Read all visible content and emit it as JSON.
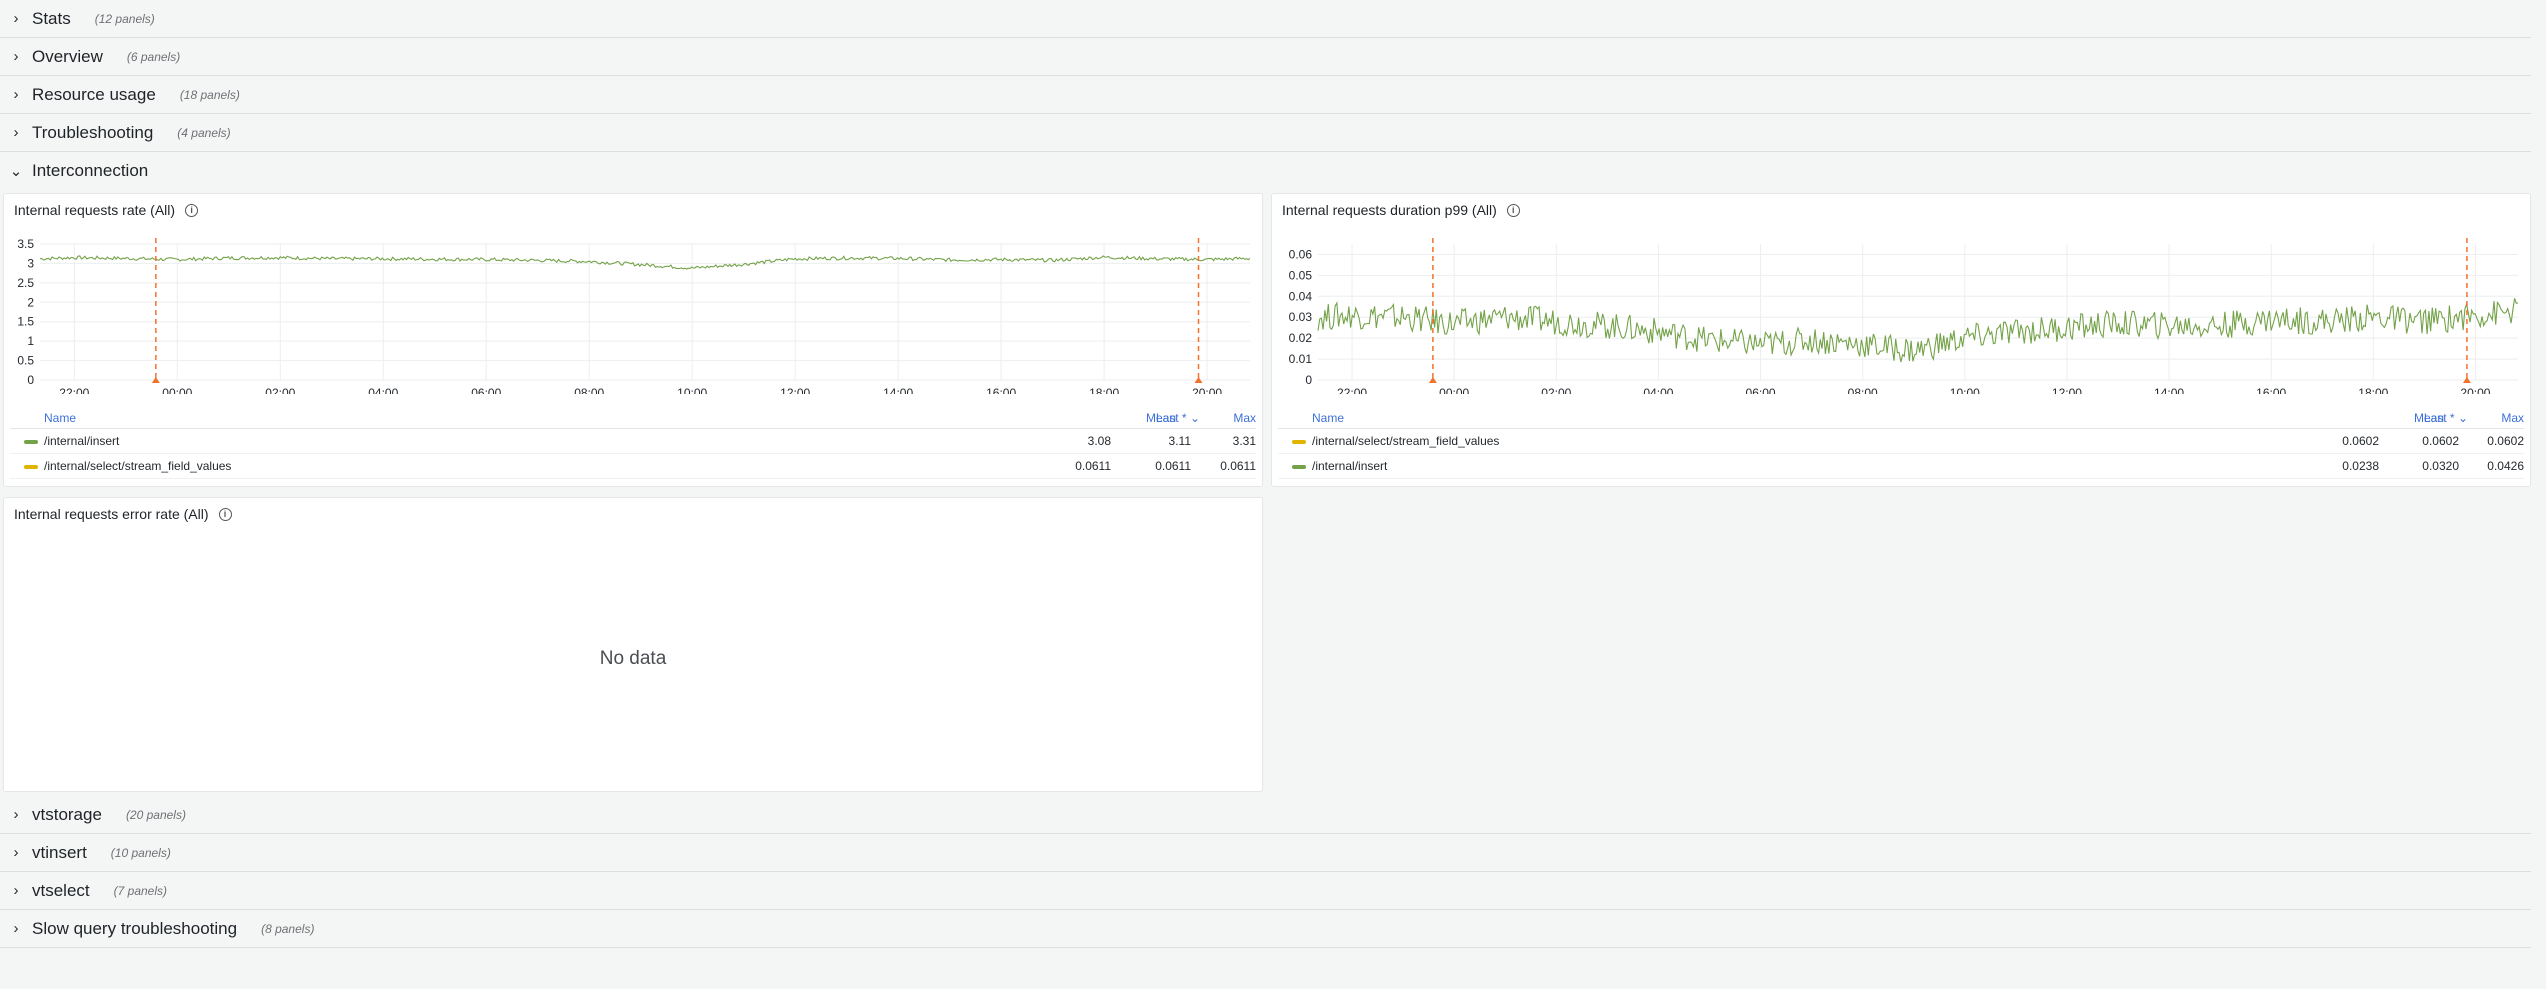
{
  "rows_top": [
    {
      "title": "Stats",
      "count": "(12 panels)"
    },
    {
      "title": "Overview",
      "count": "(6 panels)"
    },
    {
      "title": "Resource usage",
      "count": "(18 panels)"
    },
    {
      "title": "Troubleshooting",
      "count": "(4 panels)"
    }
  ],
  "open_row": {
    "title": "Interconnection"
  },
  "rows_bottom": [
    {
      "title": "vtstorage",
      "count": "(20 panels)"
    },
    {
      "title": "vtinsert",
      "count": "(10 panels)"
    },
    {
      "title": "vtselect",
      "count": "(7 panels)"
    },
    {
      "title": "Slow query troubleshooting",
      "count": "(8 panels)"
    }
  ],
  "colors": {
    "green": "#73a248",
    "yellow": "#e0b400",
    "annotation": "#f2712b",
    "legend_header": "#3d71d9"
  },
  "icons": {
    "collapsed": "chevron-right-icon",
    "expanded": "chevron-down-icon",
    "info": "info-icon"
  },
  "panels": {
    "rate": {
      "title": "Internal requests rate (All)",
      "legend_header": {
        "name": "Name",
        "mean": "Mean",
        "last": "Last *",
        "max": "Max"
      },
      "legend": [
        {
          "name": "/internal/insert",
          "mean": "3.08",
          "last": "3.11",
          "max": "3.31",
          "color": "#73a248"
        },
        {
          "name": "/internal/select/stream_field_values",
          "mean": "0.0611",
          "last": "0.0611",
          "max": "0.0611",
          "color": "#e0b400"
        }
      ]
    },
    "duration": {
      "title": "Internal requests duration p99 (All)",
      "legend_header": {
        "name": "Name",
        "mean": "Mean",
        "last": "Last *",
        "max": "Max"
      },
      "legend": [
        {
          "name": "/internal/select/stream_field_values",
          "mean": "0.0602",
          "last": "0.0602",
          "max": "0.0602",
          "color": "#e0b400"
        },
        {
          "name": "/internal/insert",
          "mean": "0.0238",
          "last": "0.0320",
          "max": "0.0426",
          "color": "#73a248"
        }
      ]
    },
    "error": {
      "title": "Internal requests error rate (All)",
      "nodata": "No data"
    }
  },
  "chart_data": [
    {
      "type": "line",
      "x_ticks": [
        "22:00",
        "00:00",
        "02:00",
        "04:00",
        "06:00",
        "08:00",
        "10:00",
        "12:00",
        "14:00",
        "16:00",
        "18:00",
        "20:00"
      ],
      "y_ticks": [
        "0",
        "0.5",
        "1",
        "1.5",
        "2",
        "2.5",
        "3",
        "3.5"
      ],
      "ylim": [
        0,
        3.5
      ],
      "annotations_x": [
        "23:35",
        "19:50"
      ],
      "series": [
        {
          "name": "/internal/insert",
          "x": [
            "21:20",
            "22:00",
            "23:00",
            "00:00",
            "01:00",
            "02:00",
            "03:00",
            "04:00",
            "05:00",
            "06:00",
            "07:00",
            "08:00",
            "09:00",
            "10:00",
            "11:00",
            "12:00",
            "13:00",
            "14:00",
            "15:00",
            "16:00",
            "17:00",
            "18:00",
            "19:00",
            "20:00",
            "20:50"
          ],
          "values": [
            3.12,
            3.15,
            3.13,
            3.1,
            3.14,
            3.15,
            3.12,
            3.12,
            3.11,
            3.1,
            3.08,
            3.05,
            2.97,
            2.88,
            2.98,
            3.12,
            3.14,
            3.13,
            3.09,
            3.1,
            3.08,
            3.16,
            3.12,
            3.1,
            3.13
          ]
        },
        {
          "name": "/internal/select/stream_field_values",
          "x": [],
          "values": []
        }
      ]
    },
    {
      "type": "line",
      "x_ticks": [
        "22:00",
        "00:00",
        "02:00",
        "04:00",
        "06:00",
        "08:00",
        "10:00",
        "12:00",
        "14:00",
        "16:00",
        "18:00",
        "20:00"
      ],
      "y_ticks": [
        "0",
        "0.01",
        "0.02",
        "0.03",
        "0.04",
        "0.05",
        "0.06"
      ],
      "ylim": [
        0,
        0.065
      ],
      "annotations_x": [
        "23:35",
        "19:50"
      ],
      "series": [
        {
          "name": "/internal/select/stream_field_values",
          "x": [],
          "values": []
        },
        {
          "name": "/internal/insert",
          "x": [
            "21:20",
            "22:00",
            "23:00",
            "00:00",
            "01:00",
            "02:00",
            "03:00",
            "04:00",
            "05:00",
            "06:00",
            "07:00",
            "08:00",
            "09:00",
            "10:00",
            "11:00",
            "12:00",
            "13:00",
            "14:00",
            "15:00",
            "16:00",
            "17:00",
            "18:00",
            "19:00",
            "20:00",
            "20:50"
          ],
          "values": [
            0.03,
            0.031,
            0.03,
            0.027,
            0.03,
            0.028,
            0.026,
            0.023,
            0.019,
            0.017,
            0.019,
            0.017,
            0.014,
            0.02,
            0.023,
            0.025,
            0.027,
            0.026,
            0.026,
            0.029,
            0.028,
            0.03,
            0.028,
            0.031,
            0.033
          ]
        }
      ]
    }
  ]
}
